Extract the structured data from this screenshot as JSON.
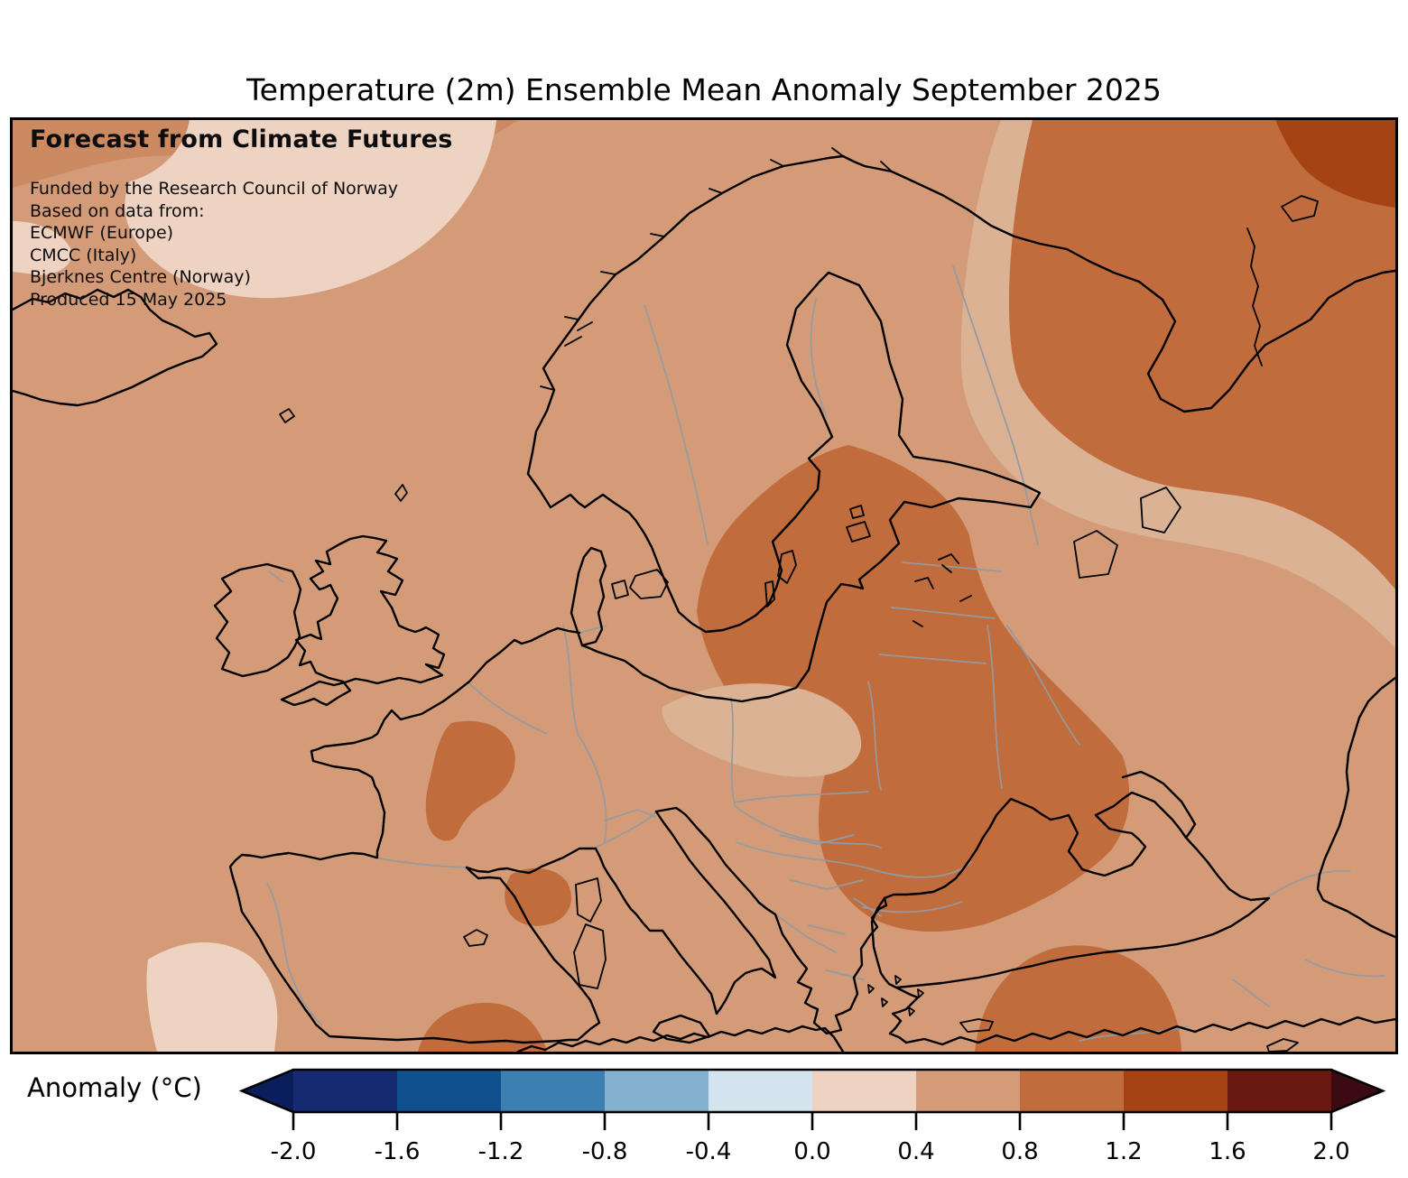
{
  "title": "Temperature (2m) Ensemble Mean Anomaly September 2025",
  "overlay": {
    "heading": "Forecast from Climate Futures",
    "lines": [
      "Funded by the Research Council of Norway",
      "Based on data from:",
      "ECMWF (Europe)",
      "CMCC (Italy)",
      "Bjerknes Centre (Norway)",
      "Produced 15 May 2025"
    ]
  },
  "colorbar": {
    "label": "Anomaly (°C)",
    "tick_labels": [
      "-2.0",
      "-1.6",
      "-1.2",
      "-0.8",
      "-0.4",
      "0.0",
      "0.4",
      "0.8",
      "1.2",
      "1.6",
      "2.0"
    ],
    "segment_colors": [
      "#152a70",
      "#11508e",
      "#3c80b2",
      "#83b1cf",
      "#d3e4ef",
      "#eed3c3",
      "#d39b78",
      "#c06c3c",
      "#a54412",
      "#69190f"
    ],
    "under_arrow_color": "#0a1e5e",
    "over_arrow_color": "#3c0b11",
    "outline_color": "#000000"
  },
  "map_palette": {
    "base_plus04_to_plus08": "#d39b78",
    "pale_0_to_plus04": "#eed3c3",
    "orange_plus08_to_plus12": "#c06c3c",
    "dark_plus12_to_plus16": "#a54412",
    "subtle_light_tan": "#dcb294",
    "subtle_dark_tan": "#cc8a63",
    "coastline": "#000000",
    "country_border": "#949aa0",
    "frame": "#000000"
  },
  "chart_data": {
    "type": "heatmap",
    "title": "Temperature (2m) Ensemble Mean Anomaly September 2025",
    "units": "°C",
    "scale_range": [
      -2.0,
      2.0
    ],
    "scale_step": 0.4,
    "legend_position": "bottom",
    "regions": [
      {
        "area": "Most of Europe (background field)",
        "anomaly": "+0.4 to +0.8"
      },
      {
        "area": "Baltic states, Poland, Belarus, Ukraine, Moldova, Romania",
        "anomaly": "+0.8 to +1.2"
      },
      {
        "area": "Kola / White Sea / NE Russia",
        "anomaly": "+0.8 to +1.2"
      },
      {
        "area": "Far northeast corner (Kanin-Pechora)",
        "anomaly": "+1.2 to +1.6"
      },
      {
        "area": "Central France",
        "anomaly": "+0.8 to +1.2"
      },
      {
        "area": "Northeast Spain / Gulf of Lion",
        "anomaly": "+0.8 to +1.2"
      },
      {
        "area": "Alboran Sea / northern Morocco",
        "anomaly": "+0.8 to +1.2"
      },
      {
        "area": "Southeast Turkey / Syria",
        "anomaly": "+0.8 to +1.2"
      },
      {
        "area": "Iceland vicinity (northwest corner)",
        "anomaly": "0.0 to +0.4"
      },
      {
        "area": "Atlantic southwest of Portugal",
        "anomaly": "0.0 to +0.4"
      }
    ]
  }
}
